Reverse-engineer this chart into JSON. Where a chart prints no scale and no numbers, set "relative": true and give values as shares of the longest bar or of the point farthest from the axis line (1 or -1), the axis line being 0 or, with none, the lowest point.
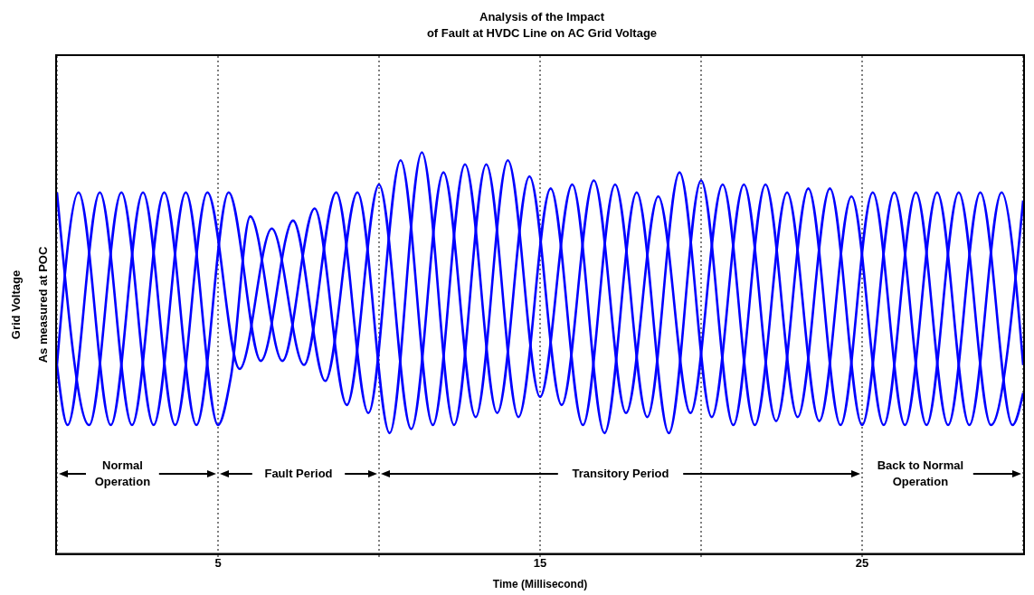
{
  "chart_data": {
    "type": "line",
    "title": "Analysis of the Impact\nof Fault at HVDC Line on AC Grid Voltage",
    "xlabel": "Time (Millisecond)",
    "ylabel": "Grid Voltage\nAs measured at POC",
    "relative": true,
    "xlim": [
      0,
      30
    ],
    "xticks": [
      5,
      {
        "value": 10,
        "label": null
      },
      15,
      {
        "value": 20,
        "label": null
      },
      25
    ],
    "grid": "x",
    "annotations": [
      "Normal Operation",
      "Fault Period",
      "Transitory Period",
      "Back to Normal Operation"
    ],
    "series": [
      {
        "color": "#0000ff",
        "x": [
          0,
          1,
          2,
          3,
          4,
          5,
          5.4,
          6,
          7,
          8,
          9,
          10,
          11,
          12,
          13,
          14,
          15,
          16,
          17,
          18,
          19,
          20,
          21,
          22,
          23,
          24,
          25,
          26,
          27,
          28,
          29,
          30
        ],
        "values": [
          0.9,
          0.32,
          0.9,
          0.32,
          0.9,
          0.32,
          0.44,
          0.84,
          0.48,
          0.86,
          0.37,
          0.92,
          0.31,
          0.95,
          0.34,
          0.98,
          0.39,
          0.92,
          0.3,
          0.9,
          0.3,
          0.93,
          0.32,
          0.92,
          0.34,
          0.91,
          0.32,
          0.9,
          0.32,
          0.9,
          0.32,
          0.88
        ]
      },
      {
        "color": "#0000ff",
        "x": [
          0,
          0.67,
          1.67,
          2.67,
          3.67,
          4.67,
          5.67,
          6.67,
          7.67,
          8.67,
          9.67,
          10.67,
          11.67,
          12.67,
          13.67,
          14.67,
          15.67,
          16.67,
          17.67,
          18.67,
          19.67,
          20.67,
          21.67,
          22.67,
          23.67,
          24.67,
          25.67,
          26.67,
          27.67,
          28.67,
          29.67,
          30
        ],
        "values": [
          0.47,
          0.9,
          0.32,
          0.9,
          0.32,
          0.9,
          0.46,
          0.81,
          0.47,
          0.9,
          0.35,
          0.98,
          0.32,
          0.97,
          0.35,
          0.94,
          0.37,
          0.93,
          0.35,
          0.89,
          0.35,
          0.92,
          0.32,
          0.9,
          0.33,
          0.89,
          0.32,
          0.9,
          0.32,
          0.9,
          0.32,
          0.4
        ]
      },
      {
        "color": "#0000ff",
        "x": [
          0,
          0.33,
          1.33,
          2.33,
          3.33,
          4.33,
          5.33,
          6.33,
          7.33,
          8.33,
          9.33,
          10.33,
          11.33,
          12.33,
          13.33,
          14.33,
          15.33,
          16.33,
          17.33,
          18.33,
          19.33,
          20.33,
          21.33,
          22.33,
          23.33,
          24.33,
          25.33,
          26.33,
          27.33,
          28.33,
          29.33,
          30
        ],
        "values": [
          0.47,
          0.32,
          0.9,
          0.32,
          0.9,
          0.32,
          0.9,
          0.48,
          0.83,
          0.43,
          0.9,
          0.3,
          1.0,
          0.32,
          0.97,
          0.34,
          0.91,
          0.32,
          0.92,
          0.34,
          0.95,
          0.34,
          0.92,
          0.33,
          0.91,
          0.32,
          0.9,
          0.32,
          0.9,
          0.32,
          0.9,
          0.47
        ]
      }
    ]
  }
}
